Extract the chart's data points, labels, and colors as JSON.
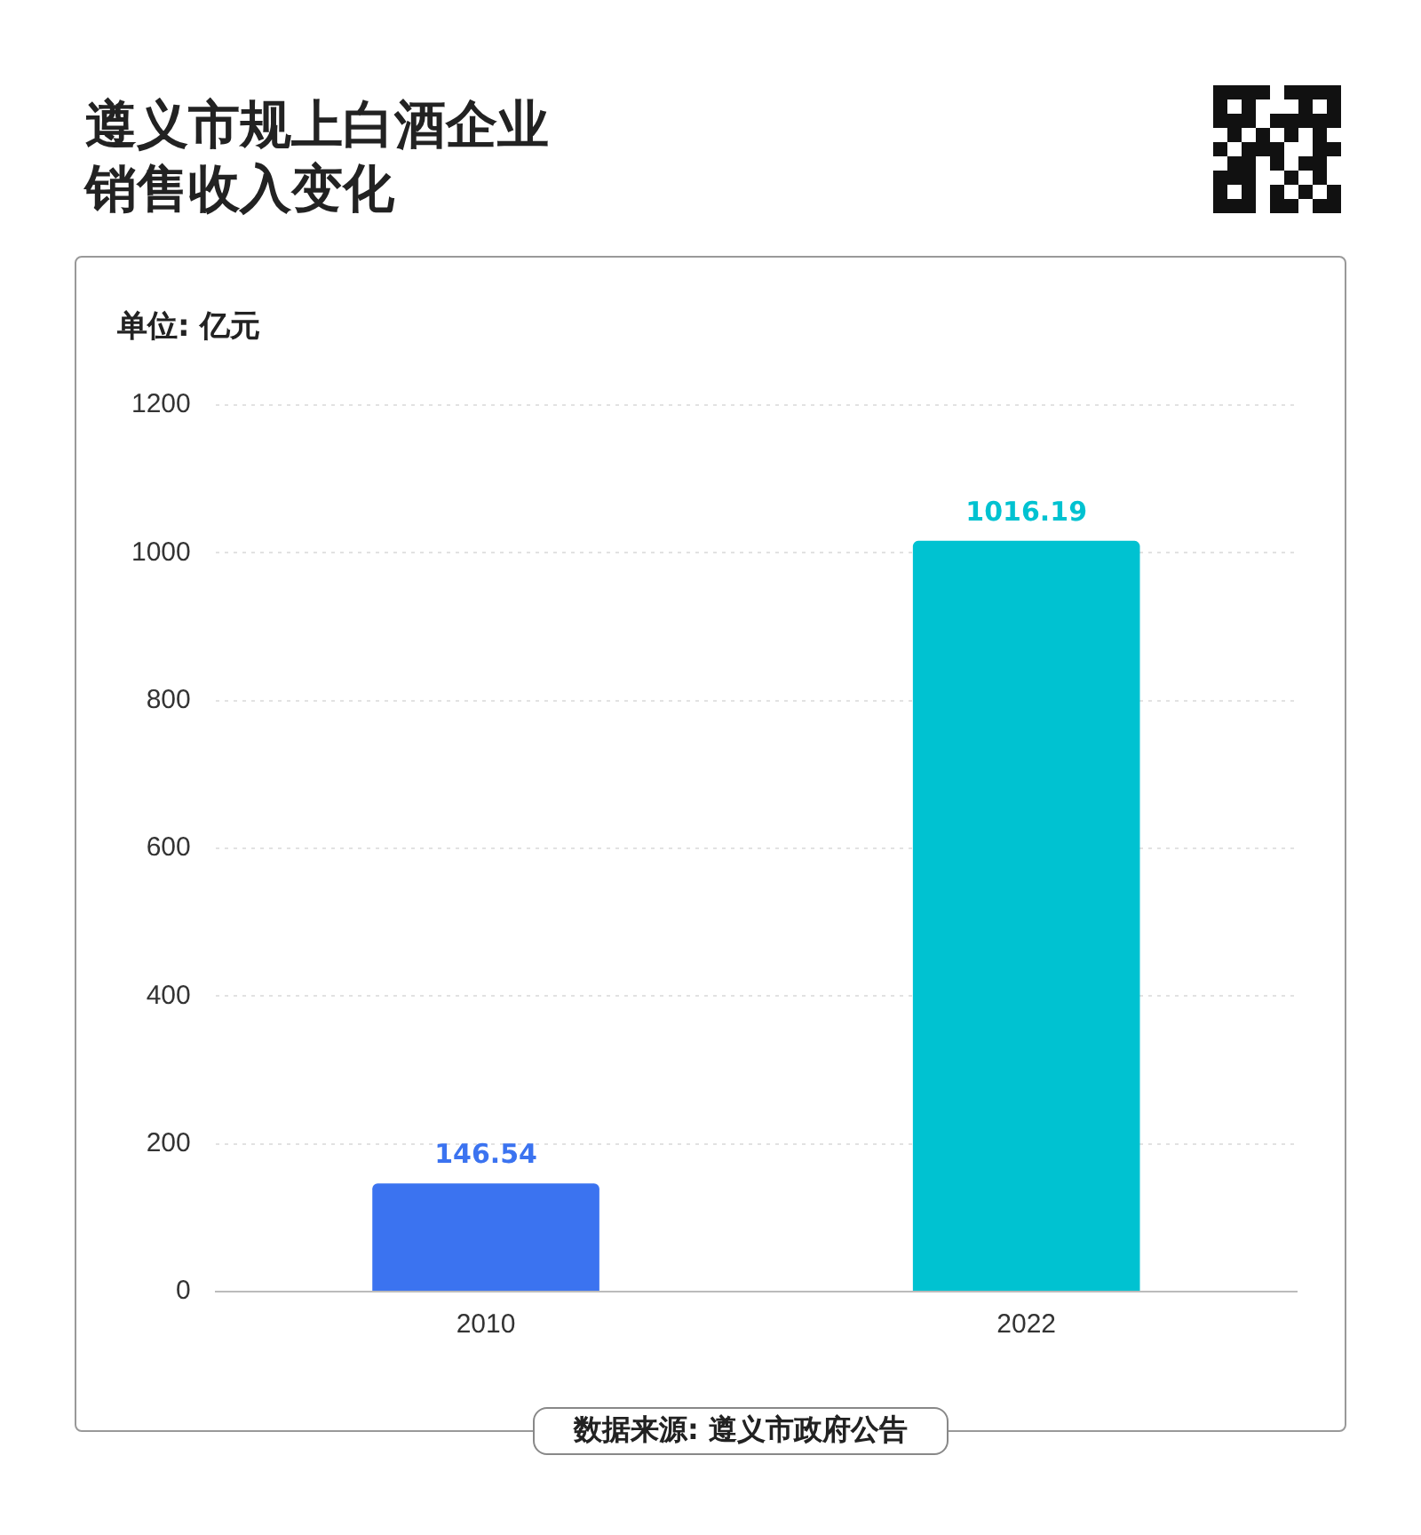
{
  "chart_data": {
    "type": "bar",
    "title": "遵义市规上白酒企业销售收入变化",
    "ylabel": "单位: 亿元",
    "categories": [
      "2010",
      "2022"
    ],
    "values": [
      146.54,
      1016.19
    ],
    "colors": [
      "#3b73f0",
      "#00c2d1"
    ],
    "ylim": [
      0,
      1200
    ],
    "yticks": [
      0,
      200,
      400,
      600,
      800,
      1000,
      1200
    ],
    "grid": "y",
    "data_labels": true,
    "annotations": [
      "数据来源: 遵义市政府公告"
    ]
  }
}
